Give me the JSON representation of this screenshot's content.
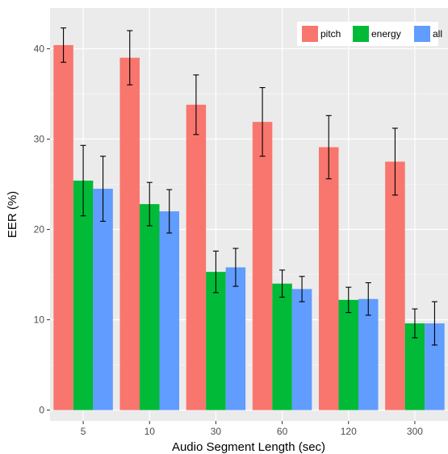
{
  "chart_data": {
    "type": "bar",
    "title": "",
    "xlabel": "Audio Segment Length (sec)",
    "ylabel": "EER (%)",
    "categories": [
      "5",
      "10",
      "30",
      "60",
      "120",
      "300"
    ],
    "series": [
      {
        "name": "pitch",
        "color": "#F8766D",
        "values": [
          40.4,
          39.0,
          33.8,
          31.9,
          29.1,
          27.5
        ],
        "error": [
          1.9,
          3.0,
          3.3,
          3.8,
          3.5,
          3.7
        ]
      },
      {
        "name": "energy",
        "color": "#00BA38",
        "values": [
          25.4,
          22.8,
          15.3,
          14.0,
          12.2,
          9.6
        ],
        "error": [
          3.9,
          2.4,
          2.3,
          1.5,
          1.4,
          1.6
        ]
      },
      {
        "name": "all",
        "color": "#619CFF",
        "values": [
          24.5,
          22.0,
          15.8,
          13.4,
          12.3,
          9.6
        ],
        "error": [
          3.6,
          2.4,
          2.1,
          1.4,
          1.8,
          2.4
        ]
      }
    ],
    "ylim": [
      -1.2,
      44.5
    ],
    "yticks": [
      0,
      10,
      20,
      30,
      40
    ],
    "grid": true,
    "panel_background": "#EBEBEB",
    "legend_position": "top-right"
  }
}
